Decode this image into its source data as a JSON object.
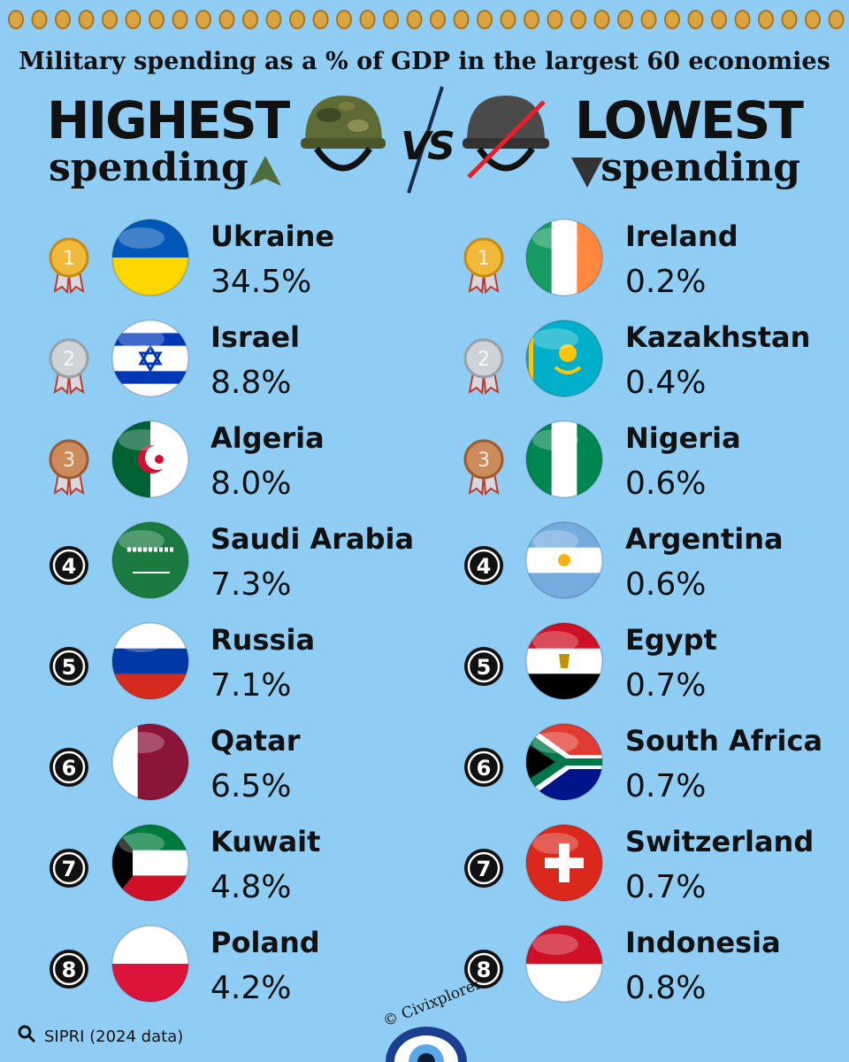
{
  "title": "Military spending as a % of GDP in the largest 60 economies",
  "header": {
    "left_big": "HIGHEST",
    "left_small": "spending",
    "vs": "VS",
    "right_big": "LOWEST",
    "right_small": "spending"
  },
  "highest": [
    {
      "rank": "1",
      "country": "Ukraine",
      "value": "34.5%"
    },
    {
      "rank": "2",
      "country": "Israel",
      "value": "8.8%"
    },
    {
      "rank": "3",
      "country": "Algeria",
      "value": "8.0%"
    },
    {
      "rank": "4",
      "country": "Saudi Arabia",
      "value": "7.3%"
    },
    {
      "rank": "5",
      "country": "Russia",
      "value": "7.1%"
    },
    {
      "rank": "6",
      "country": "Qatar",
      "value": "6.5%"
    },
    {
      "rank": "7",
      "country": "Kuwait",
      "value": "4.8%"
    },
    {
      "rank": "8",
      "country": "Poland",
      "value": "4.2%"
    }
  ],
  "lowest": [
    {
      "rank": "1",
      "country": "Ireland",
      "value": "0.2%"
    },
    {
      "rank": "2",
      "country": "Kazakhstan",
      "value": "0.4%"
    },
    {
      "rank": "3",
      "country": "Nigeria",
      "value": "0.6%"
    },
    {
      "rank": "4",
      "country": "Argentina",
      "value": "0.6%"
    },
    {
      "rank": "5",
      "country": "Egypt",
      "value": "0.7%"
    },
    {
      "rank": "6",
      "country": "South Africa",
      "value": "0.7%"
    },
    {
      "rank": "7",
      "country": "Switzerland",
      "value": "0.7%"
    },
    {
      "rank": "8",
      "country": "Indonesia",
      "value": "0.8%"
    }
  ],
  "footer": {
    "source": "SIPRI (2024 data)",
    "credit": "© Civixplorer"
  }
}
